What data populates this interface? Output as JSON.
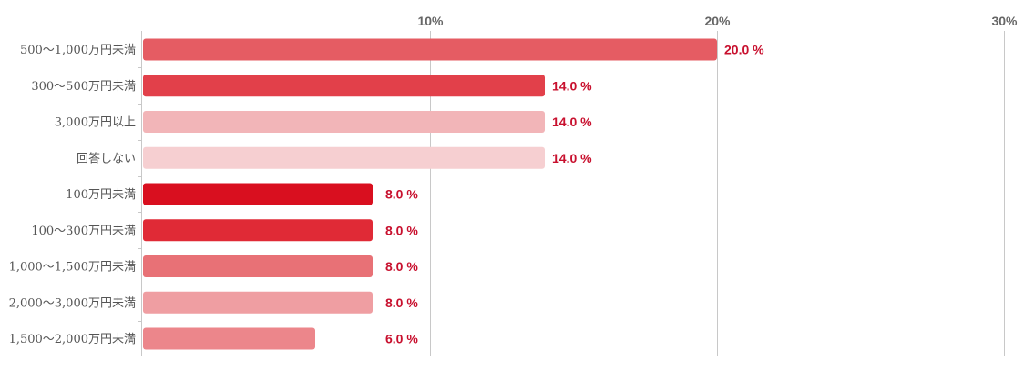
{
  "chart_data": {
    "type": "bar",
    "orientation": "horizontal",
    "title": "",
    "xlabel": "",
    "ylabel": "",
    "xlim": [
      0,
      30
    ],
    "x_ticks": [
      10,
      20,
      30
    ],
    "x_tick_labels": [
      "10%",
      "20%",
      "30%"
    ],
    "grid": true,
    "legend": "none",
    "categories": [
      "500〜1,000万円未満",
      "300〜500万円未満",
      "3,000万円以上",
      "回答しない",
      "100万円未満",
      "100〜300万円未満",
      "1,000〜1,500万円未満",
      "2,000〜3,000万円未満",
      "1,500〜2,000万円未満"
    ],
    "values": [
      20.0,
      14.0,
      14.0,
      14.0,
      8.0,
      8.0,
      8.0,
      8.0,
      6.0
    ],
    "value_labels": [
      "20.0 %",
      "14.0 %",
      "14.0 %",
      "14.0 %",
      "8.0 %",
      "8.0 %",
      "8.0 %",
      "8.0 %",
      "6.0 %"
    ],
    "colors": [
      "#e55c63",
      "#e2404a",
      "#f2b5b8",
      "#f6cfd1",
      "#d90f1f",
      "#e02a36",
      "#e87176",
      "#ef9ea2",
      "#ec868b"
    ],
    "label_color": "#c8102e",
    "grid_color": "#c8c8c8"
  }
}
